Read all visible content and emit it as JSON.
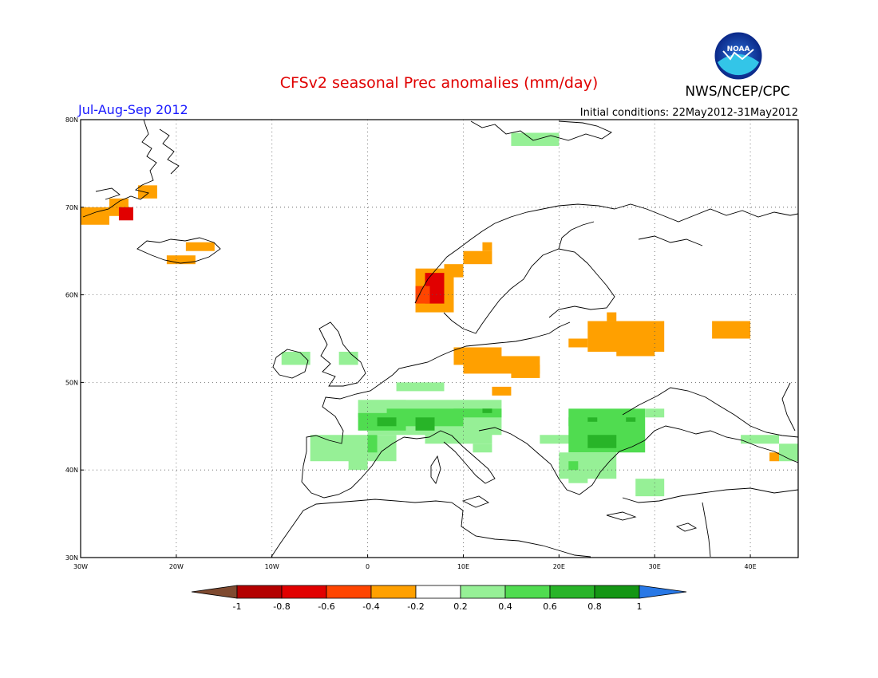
{
  "header": {
    "title": "CFSv2 seasonal Prec anomalies (mm/day)",
    "period": "Jul-Aug-Sep 2012",
    "initial_conditions": "Initial conditions: 22May2012-31May2012",
    "agency": "NWS/NCEP/CPC",
    "logo_text": "NOAA"
  },
  "map": {
    "lon_range": [
      -30,
      45
    ],
    "lat_range": [
      30,
      80
    ],
    "lon_ticks": [
      {
        "value": -30,
        "label": "30W"
      },
      {
        "value": -20,
        "label": "20W"
      },
      {
        "value": -10,
        "label": "10W"
      },
      {
        "value": 0,
        "label": "0"
      },
      {
        "value": 10,
        "label": "10E"
      },
      {
        "value": 20,
        "label": "20E"
      },
      {
        "value": 30,
        "label": "30E"
      },
      {
        "value": 40,
        "label": "40E"
      }
    ],
    "lat_ticks": [
      {
        "value": 30,
        "label": "30N"
      },
      {
        "value": 40,
        "label": "40N"
      },
      {
        "value": 50,
        "label": "50N"
      },
      {
        "value": 60,
        "label": "60N"
      },
      {
        "value": 70,
        "label": "70N"
      },
      {
        "value": 80,
        "label": "80N"
      }
    ],
    "anomaly_cells": [
      {
        "lon0": -30,
        "lon1": -27,
        "lat0": 68,
        "lat1": 70,
        "value": -0.3
      },
      {
        "lon0": -27,
        "lon1": -25,
        "lat0": 69,
        "lat1": 71,
        "value": -0.3
      },
      {
        "lon0": -26,
        "lon1": -24.5,
        "lat0": 68.5,
        "lat1": 70,
        "value": -0.65
      },
      {
        "lon0": -24,
        "lon1": -22,
        "lat0": 71,
        "lat1": 72.5,
        "value": -0.3
      },
      {
        "lon0": -19,
        "lon1": -16,
        "lat0": 65,
        "lat1": 66,
        "value": -0.3
      },
      {
        "lon0": -21,
        "lon1": -18,
        "lat0": 63.5,
        "lat1": 64.5,
        "value": -0.3
      },
      {
        "lon0": 5,
        "lon1": 9,
        "lat0": 58,
        "lat1": 63,
        "value": -0.3
      },
      {
        "lon0": 6,
        "lon1": 8,
        "lat0": 59,
        "lat1": 62.5,
        "value": -0.75
      },
      {
        "lon0": 5,
        "lon1": 6.5,
        "lat0": 59,
        "lat1": 61,
        "value": -0.6
      },
      {
        "lon0": 8,
        "lon1": 10,
        "lat0": 62,
        "lat1": 63.5,
        "value": -0.3
      },
      {
        "lon0": 10,
        "lon1": 13,
        "lat0": 63.5,
        "lat1": 65,
        "value": -0.3
      },
      {
        "lon0": 12,
        "lon1": 13,
        "lat0": 65,
        "lat1": 66,
        "value": -0.3
      },
      {
        "lon0": 9,
        "lon1": 14,
        "lat0": 52,
        "lat1": 54,
        "value": -0.3
      },
      {
        "lon0": 10,
        "lon1": 18,
        "lat0": 51,
        "lat1": 53,
        "value": -0.3
      },
      {
        "lon0": 15,
        "lon1": 18,
        "lat0": 50.5,
        "lat1": 52,
        "value": -0.3
      },
      {
        "lon0": 13,
        "lon1": 15,
        "lat0": 48.5,
        "lat1": 49.5,
        "value": -0.3
      },
      {
        "lon0": 21,
        "lon1": 23,
        "lat0": 54,
        "lat1": 55,
        "value": -0.3
      },
      {
        "lon0": 23,
        "lon1": 31,
        "lat0": 53.5,
        "lat1": 57,
        "value": -0.3
      },
      {
        "lon0": 25,
        "lon1": 26,
        "lat0": 57,
        "lat1": 58,
        "value": -0.3
      },
      {
        "lon0": 26,
        "lon1": 30,
        "lat0": 53,
        "lat1": 54,
        "value": -0.3
      },
      {
        "lon0": 36,
        "lon1": 40,
        "lat0": 55,
        "lat1": 57,
        "value": -0.3
      },
      {
        "lon0": 42,
        "lon1": 43,
        "lat0": 41,
        "lat1": 42,
        "value": -0.3
      },
      {
        "lon0": -9,
        "lon1": -6,
        "lat0": 52,
        "lat1": 53.5,
        "value": 0.3
      },
      {
        "lon0": -3,
        "lon1": -1,
        "lat0": 52,
        "lat1": 53.5,
        "value": 0.3
      },
      {
        "lon0": 3,
        "lon1": 8,
        "lat0": 49,
        "lat1": 50,
        "value": 0.3
      },
      {
        "lon0": -1,
        "lon1": 4,
        "lat0": 46,
        "lat1": 48,
        "value": 0.3
      },
      {
        "lon0": 0,
        "lon1": 14,
        "lat0": 44,
        "lat1": 48,
        "value": 0.3
      },
      {
        "lon0": -6,
        "lon1": 3,
        "lat0": 41,
        "lat1": 44,
        "value": 0.3
      },
      {
        "lon0": -2,
        "lon1": 0,
        "lat0": 40,
        "lat1": 41.5,
        "value": 0.3
      },
      {
        "lon0": 6,
        "lon1": 13,
        "lat0": 43,
        "lat1": 45,
        "value": 0.3
      },
      {
        "lon0": 11,
        "lon1": 13,
        "lat0": 42,
        "lat1": 43,
        "value": 0.3
      },
      {
        "lon0": 18,
        "lon1": 22,
        "lat0": 43,
        "lat1": 44,
        "value": 0.3
      },
      {
        "lon0": 21,
        "lon1": 29,
        "lat0": 42,
        "lat1": 47,
        "value": 0.45
      },
      {
        "lon0": 29,
        "lon1": 31,
        "lat0": 46,
        "lat1": 47,
        "value": 0.3
      },
      {
        "lon0": 20,
        "lon1": 26,
        "lat0": 39,
        "lat1": 42,
        "value": 0.3
      },
      {
        "lon0": 21,
        "lon1": 23,
        "lat0": 38.5,
        "lat1": 39.5,
        "value": 0.3
      },
      {
        "lon0": 28,
        "lon1": 31,
        "lat0": 37,
        "lat1": 39,
        "value": 0.3
      },
      {
        "lon0": 39,
        "lon1": 43,
        "lat0": 43,
        "lat1": 44,
        "value": 0.3
      },
      {
        "lon0": 43,
        "lon1": 45,
        "lat0": 41,
        "lat1": 43,
        "value": 0.3
      },
      {
        "lon0": 15,
        "lon1": 20,
        "lat0": 77,
        "lat1": 78.5,
        "value": 0.3
      },
      {
        "lon0": 2,
        "lon1": 10,
        "lat0": 45,
        "lat1": 47,
        "value": 0.5
      },
      {
        "lon0": -1,
        "lon1": 4,
        "lat0": 44.5,
        "lat1": 46.5,
        "value": 0.5
      },
      {
        "lon0": 9,
        "lon1": 14,
        "lat0": 46,
        "lat1": 47,
        "value": 0.5
      },
      {
        "lon0": 0,
        "lon1": 1,
        "lat0": 42,
        "lat1": 44,
        "value": 0.5
      },
      {
        "lon0": 22,
        "lon1": 26,
        "lat0": 42.5,
        "lat1": 44,
        "value": 0.5
      },
      {
        "lon0": 21,
        "lon1": 28,
        "lat0": 45,
        "lat1": 46,
        "value": 0.5
      },
      {
        "lon0": 21,
        "lon1": 22,
        "lat0": 40,
        "lat1": 41,
        "value": 0.5
      },
      {
        "lon0": 1,
        "lon1": 3,
        "lat0": 45,
        "lat1": 46,
        "value": 0.7
      },
      {
        "lon0": 5,
        "lon1": 7,
        "lat0": 44.5,
        "lat1": 46,
        "value": 0.7
      },
      {
        "lon0": 12,
        "lon1": 13,
        "lat0": 46.5,
        "lat1": 47,
        "value": 0.7
      },
      {
        "lon0": 23,
        "lon1": 24,
        "lat0": 45.5,
        "lat1": 46,
        "value": 0.7
      },
      {
        "lon0": 27,
        "lon1": 28,
        "lat0": 45.5,
        "lat1": 46,
        "value": 0.7
      },
      {
        "lon0": 23,
        "lon1": 26,
        "lat0": 42.5,
        "lat1": 44,
        "value": 0.7
      }
    ]
  },
  "colorbar": {
    "levels": [
      -1,
      -0.8,
      -0.6,
      -0.4,
      -0.2,
      0.2,
      0.4,
      0.6,
      0.8,
      1
    ],
    "level_labels": [
      "-1",
      "-0.8",
      "-0.6",
      "-0.4",
      "-0.2",
      "0.2",
      "0.4",
      "0.6",
      "0.8",
      "1"
    ],
    "colors": [
      "#7f4a30",
      "#b40000",
      "#e10000",
      "#ff4500",
      "#ffa000",
      "#ffffff",
      "#96f096",
      "#50dc50",
      "#28b428",
      "#149614",
      "#2878e6"
    ]
  }
}
